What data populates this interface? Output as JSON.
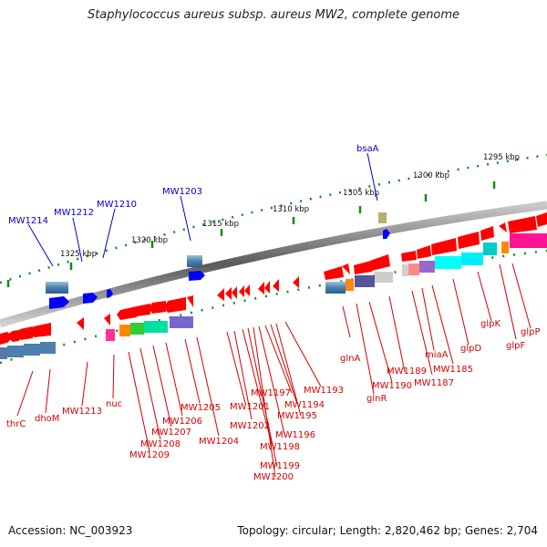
{
  "title": "Staphylococcus aureus subsp. aureus MW2, complete genome",
  "footer": {
    "accession": "Accession: NC_003923",
    "topology": "Topology: circular; Length: 2,820,462 bp; Genes: 2,704"
  },
  "scale_labels": [
    "1325 kbp",
    "1320 kbp",
    "1315 kbp",
    "1310 kbp",
    "1305 kbp",
    "1300 kbp",
    "1295 kbp"
  ],
  "blue_gene_labels": [
    "MW1214",
    "MW1212",
    "MW1210",
    "MW1203",
    "bsaA"
  ],
  "red_gene_labels": [
    "thrC",
    "dhoM",
    "MW1213",
    "nuc",
    "MW1209",
    "MW1208",
    "MW1207",
    "MW1206",
    "MW1205",
    "MW1204",
    "MW1201",
    "MW1202",
    "MW1197",
    "MW1198",
    "MW1199",
    "MW1200",
    "MW1194",
    "MW1195",
    "MW1196",
    "MW1193",
    "glnA",
    "glnR",
    "MW1190",
    "MW1189",
    "MW1187",
    "miaA",
    "MW1185",
    "glpD",
    "glpK",
    "glpF",
    "glpP"
  ],
  "colors": {
    "forward_gene": "#0000ff",
    "reverse_gene": "#ff0000",
    "forward_label": "#0000cc",
    "reverse_label": "#d40000",
    "backbone": "#8a8a8a",
    "tick_green": "#138a13",
    "tick_olive": "#a8a868"
  }
}
